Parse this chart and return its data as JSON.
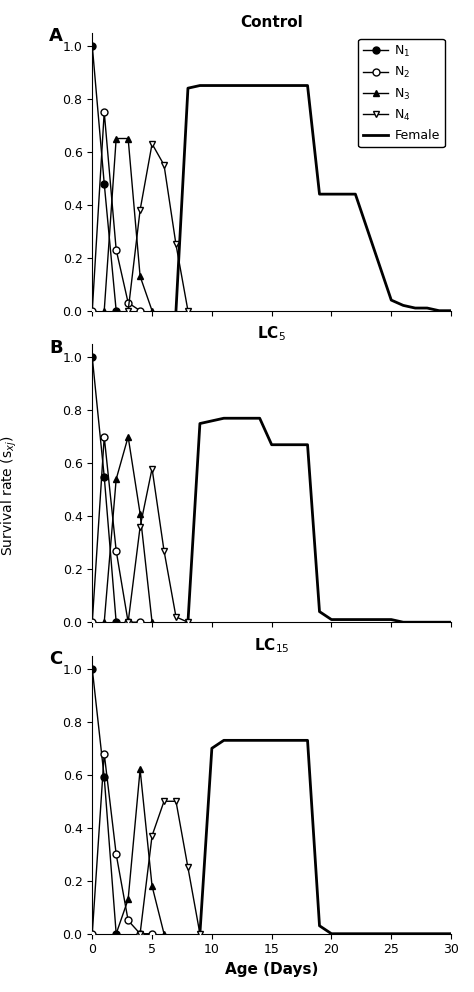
{
  "panels": [
    {
      "label": "A",
      "title": "Control",
      "N1": {
        "x": [
          0,
          1,
          2
        ],
        "y": [
          1.0,
          0.48,
          0.0
        ]
      },
      "N2": {
        "x": [
          0,
          1,
          2,
          3,
          4
        ],
        "y": [
          0.0,
          0.75,
          0.23,
          0.03,
          0.0
        ]
      },
      "N3": {
        "x": [
          1,
          2,
          3,
          4,
          5
        ],
        "y": [
          0.0,
          0.65,
          0.65,
          0.13,
          0.0
        ]
      },
      "N4": {
        "x": [
          3,
          4,
          5,
          6,
          7,
          8
        ],
        "y": [
          0.0,
          0.38,
          0.63,
          0.55,
          0.25,
          0.0
        ]
      },
      "Female": {
        "x": [
          7,
          8,
          9,
          10,
          11,
          17,
          18,
          19,
          20,
          22,
          25,
          26,
          27,
          28,
          29,
          30
        ],
        "y": [
          0.0,
          0.84,
          0.85,
          0.85,
          0.85,
          0.85,
          0.85,
          0.44,
          0.44,
          0.44,
          0.04,
          0.02,
          0.01,
          0.01,
          0.0,
          0.0
        ]
      }
    },
    {
      "label": "B",
      "title": "LC$_5$",
      "N1": {
        "x": [
          0,
          1,
          2
        ],
        "y": [
          1.0,
          0.55,
          0.0
        ]
      },
      "N2": {
        "x": [
          0,
          1,
          2,
          3,
          4
        ],
        "y": [
          0.0,
          0.7,
          0.27,
          0.0,
          0.0
        ]
      },
      "N3": {
        "x": [
          1,
          2,
          3,
          4,
          5
        ],
        "y": [
          0.0,
          0.54,
          0.7,
          0.41,
          0.0
        ]
      },
      "N4": {
        "x": [
          3,
          4,
          5,
          6,
          7,
          8
        ],
        "y": [
          0.0,
          0.36,
          0.58,
          0.27,
          0.02,
          0.0
        ]
      },
      "Female": {
        "x": [
          8,
          9,
          10,
          11,
          12,
          14,
          15,
          16,
          17,
          18,
          19,
          20,
          22,
          24,
          25,
          26,
          27,
          28,
          29,
          30
        ],
        "y": [
          0.0,
          0.75,
          0.76,
          0.77,
          0.77,
          0.77,
          0.67,
          0.67,
          0.67,
          0.67,
          0.04,
          0.01,
          0.01,
          0.01,
          0.01,
          0.0,
          0.0,
          0.0,
          0.0,
          0.0
        ]
      }
    },
    {
      "label": "C",
      "title": "LC$_{15}$",
      "N1": {
        "x": [
          0,
          1,
          2
        ],
        "y": [
          1.0,
          0.59,
          0.0
        ]
      },
      "N2": {
        "x": [
          0,
          1,
          2,
          3,
          4,
          5
        ],
        "y": [
          0.0,
          0.68,
          0.3,
          0.05,
          0.0,
          0.0
        ]
      },
      "N3": {
        "x": [
          2,
          3,
          4,
          5,
          6
        ],
        "y": [
          0.0,
          0.13,
          0.62,
          0.18,
          0.0
        ]
      },
      "N4": {
        "x": [
          4,
          5,
          6,
          7,
          8,
          9
        ],
        "y": [
          0.0,
          0.37,
          0.5,
          0.5,
          0.25,
          0.0
        ]
      },
      "Female": {
        "x": [
          9,
          10,
          11,
          14,
          15,
          16,
          18,
          19,
          20,
          21,
          30
        ],
        "y": [
          0.0,
          0.7,
          0.73,
          0.73,
          0.73,
          0.73,
          0.73,
          0.03,
          0.0,
          0.0,
          0.0
        ]
      }
    }
  ],
  "xlim": [
    0,
    30
  ],
  "ylim": [
    0.0,
    1.05
  ],
  "xticks": [
    0,
    5,
    10,
    15,
    20,
    25,
    30
  ],
  "yticks": [
    0.0,
    0.2,
    0.4,
    0.6,
    0.8,
    1.0
  ],
  "xlabel": "Age (Days)",
  "ylabel": "Survival rate (s$_{xj}$)",
  "legend_labels": [
    "N$_1$",
    "N$_2$",
    "N$_3$",
    "N$_4$",
    "Female"
  ],
  "bg_color": "white",
  "tick_fontsize": 9,
  "title_fontsize": 11,
  "label_fontsize": 13,
  "axis_label_fontsize": 10
}
